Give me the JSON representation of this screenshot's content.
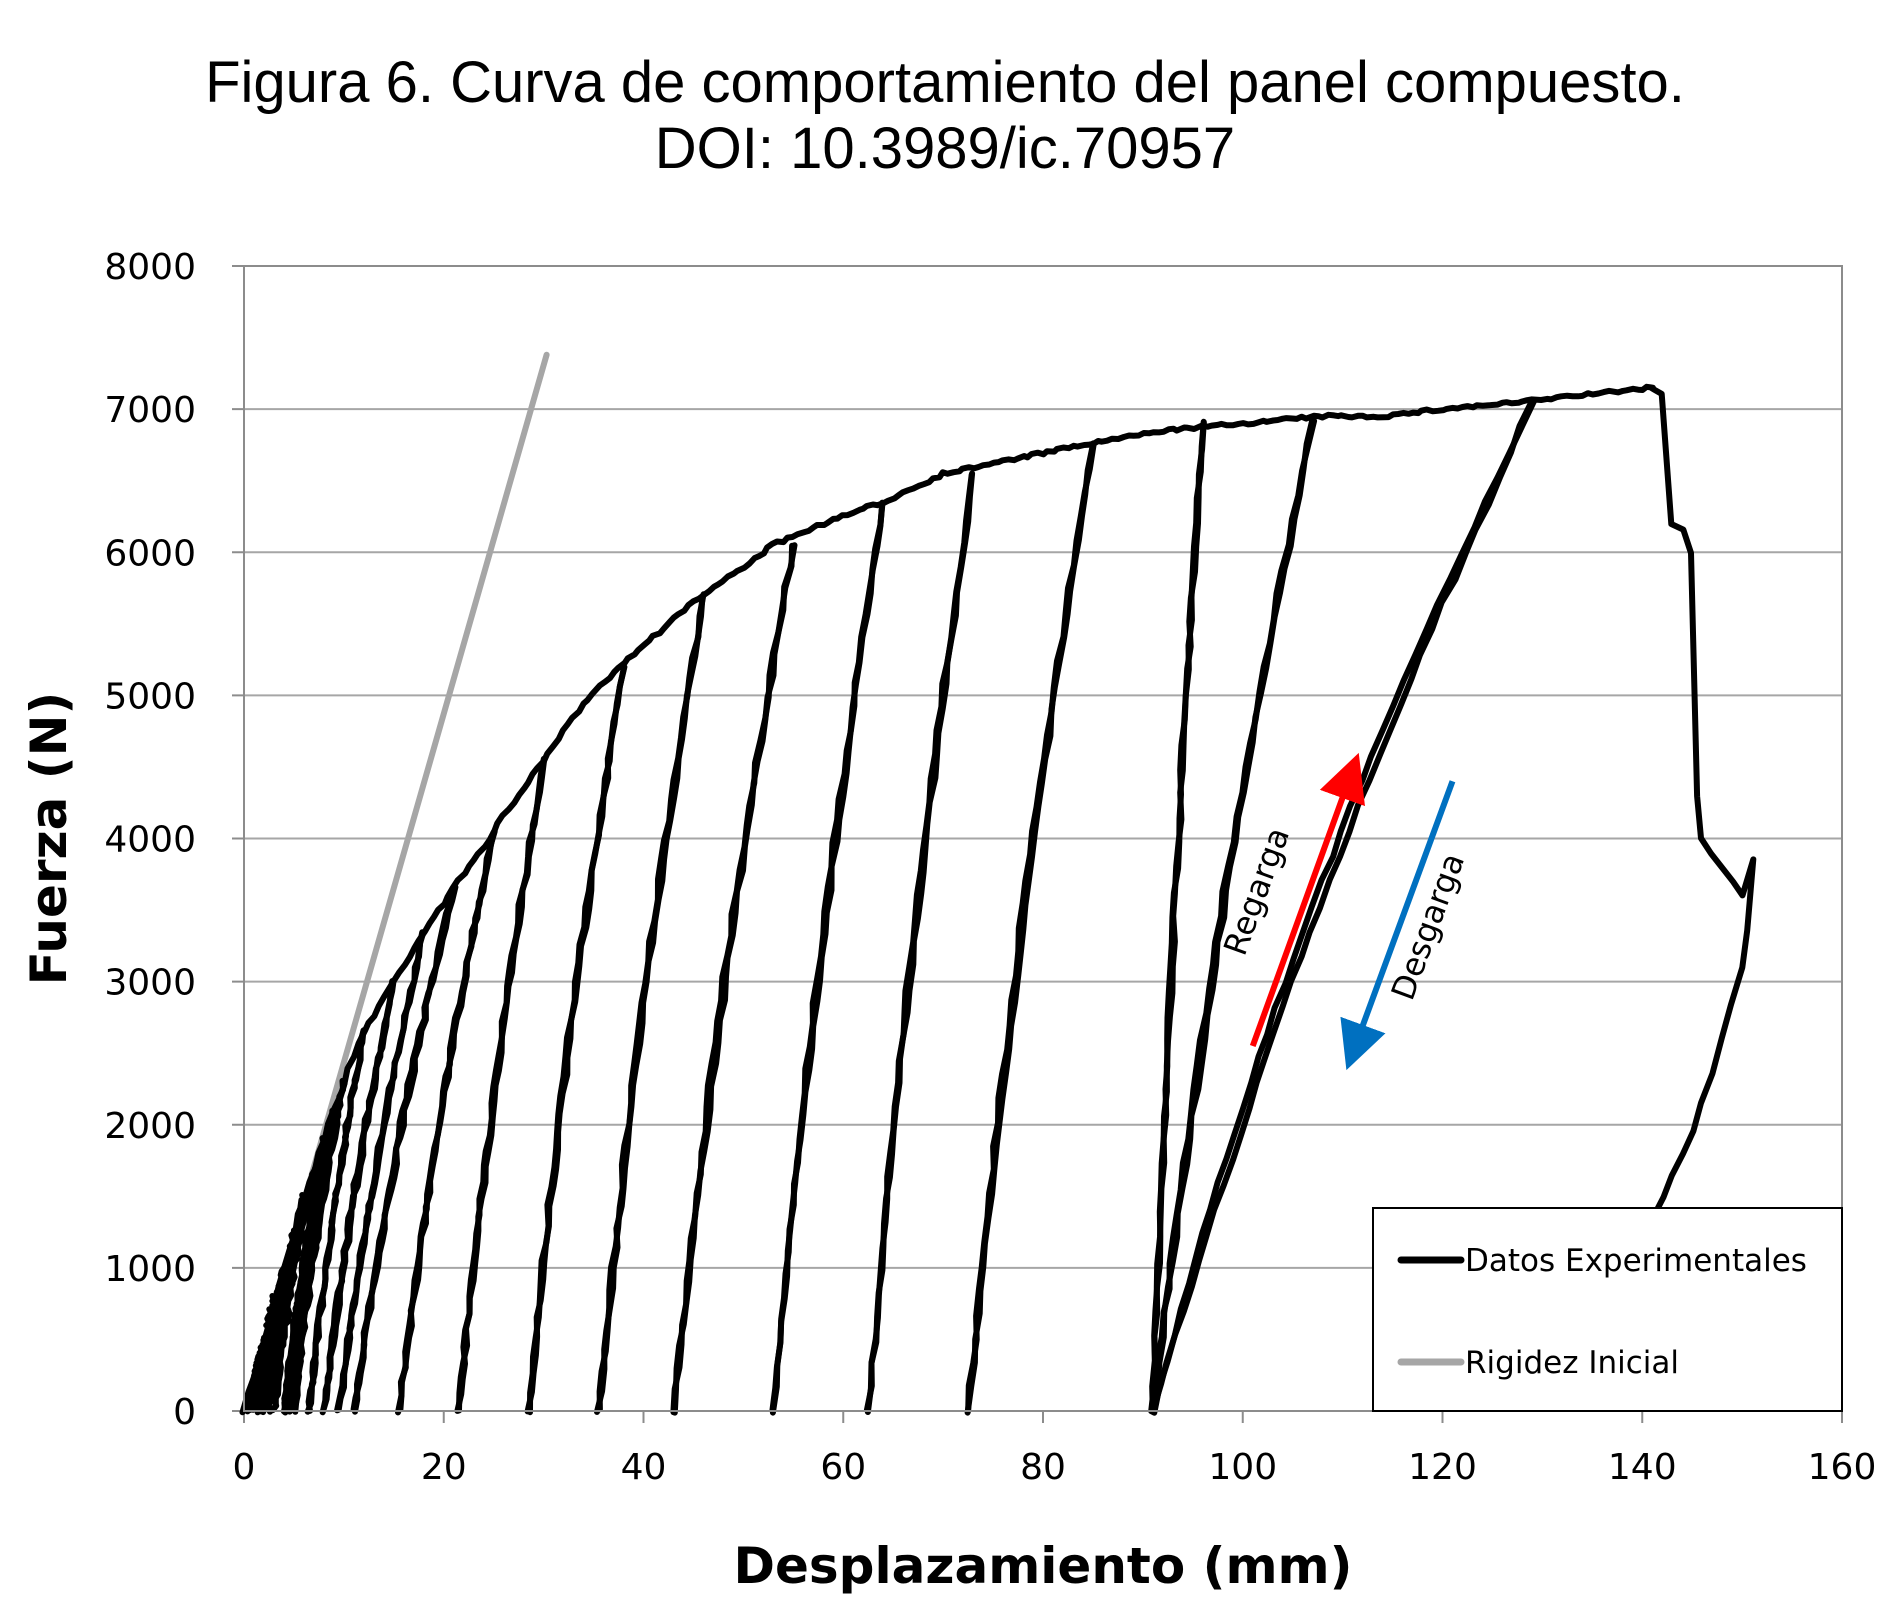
{
  "figure": {
    "title_line1": "Figura 6. Curva de comportamiento del panel compuesto.",
    "title_line2": "DOI: 10.3989/ic.70957"
  },
  "chart_data": {
    "type": "line",
    "xlabel": "Desplazamiento  (mm)",
    "ylabel": "Fuerza  (N)",
    "xlim": [
      0,
      160
    ],
    "ylim": [
      0,
      8000
    ],
    "xticks": [
      0,
      20,
      40,
      60,
      80,
      100,
      120,
      140,
      160
    ],
    "yticks": [
      0,
      1000,
      2000,
      3000,
      4000,
      5000,
      6000,
      7000,
      8000
    ],
    "grid": "horizontal",
    "legend": {
      "position": "bottom-right"
    },
    "series": [
      {
        "name": "Datos Experimentales",
        "color": "#000000",
        "envelope": [
          [
            0,
            0
          ],
          [
            2,
            500
          ],
          [
            4,
            1000
          ],
          [
            6,
            1500
          ],
          [
            8,
            1900
          ],
          [
            10,
            2300
          ],
          [
            12,
            2650
          ],
          [
            15,
            3000
          ],
          [
            18,
            3350
          ],
          [
            21,
            3650
          ],
          [
            25,
            4050
          ],
          [
            28,
            4350
          ],
          [
            30,
            4550
          ],
          [
            33,
            4850
          ],
          [
            36,
            5100
          ],
          [
            40,
            5350
          ],
          [
            44,
            5600
          ],
          [
            48,
            5800
          ],
          [
            53,
            6050
          ],
          [
            58,
            6200
          ],
          [
            64,
            6350
          ],
          [
            70,
            6550
          ],
          [
            77,
            6650
          ],
          [
            84,
            6750
          ],
          [
            92,
            6850
          ],
          [
            100,
            6900
          ],
          [
            108,
            6950
          ],
          [
            114,
            6950
          ],
          [
            120,
            7000
          ],
          [
            128,
            7050
          ],
          [
            134,
            7100
          ],
          [
            141,
            7150
          ]
        ],
        "cycles": [
          {
            "peak": [
              2,
              500
            ],
            "residual": 0.5
          },
          {
            "peak": [
              3,
              800
            ],
            "residual": 1.0
          },
          {
            "peak": [
              4,
              1000
            ],
            "residual": 1.5
          },
          {
            "peak": [
              5,
              1250
            ],
            "residual": 2.0
          },
          {
            "peak": [
              6,
              1500
            ],
            "residual": 2.5
          },
          {
            "peak": [
              7,
              1700
            ],
            "residual": 3.0
          },
          {
            "peak": [
              8,
              1900
            ],
            "residual": 4.0
          },
          {
            "peak": [
              9,
              2100
            ],
            "residual": 4.5
          },
          {
            "peak": [
              10,
              2300
            ],
            "residual": 5.0
          },
          {
            "peak": [
              12,
              2650
            ],
            "residual": 6.5
          },
          {
            "peak": [
              15,
              3000
            ],
            "residual": 8.0
          },
          {
            "peak": [
              18,
              3350
            ],
            "residual": 9.5
          },
          {
            "peak": [
              21,
              3650
            ],
            "residual": 11.0
          },
          {
            "peak": [
              25,
              4050
            ],
            "residual": 15.5
          },
          {
            "peak": [
              30,
              4550
            ],
            "residual": 21.5
          },
          {
            "peak": [
              38,
              5200
            ],
            "residual": 28.5
          },
          {
            "peak": [
              46,
              5700
            ],
            "residual": 35.5
          },
          {
            "peak": [
              55,
              6050
            ],
            "residual": 43.0
          },
          {
            "peak": [
              64,
              6350
            ],
            "residual": 53.0
          },
          {
            "peak": [
              73,
              6550
            ],
            "residual": 62.5
          },
          {
            "peak": [
              85,
              6750
            ],
            "residual": 72.5
          },
          {
            "peak": [
              96,
              6900
            ],
            "residual": 91.0
          },
          {
            "peak": [
              107,
              6920
            ],
            "residual": 91.0
          },
          {
            "peak": [
              129,
              7050
            ],
            "residual": 91.0
          }
        ],
        "post_peak": [
          [
            141,
            7150
          ],
          [
            142,
            7100
          ],
          [
            143,
            6200
          ],
          [
            144,
            6150
          ],
          [
            145,
            6000
          ],
          [
            145.5,
            4300
          ],
          [
            146,
            4000
          ],
          [
            147,
            3900
          ],
          [
            149,
            3700
          ],
          [
            150,
            3600
          ],
          [
            151,
            3850
          ],
          [
            150.5,
            3350
          ],
          [
            150,
            3100
          ],
          [
            149,
            2850
          ],
          [
            148,
            2600
          ],
          [
            147,
            2350
          ],
          [
            146,
            2150
          ],
          [
            145,
            1950
          ],
          [
            144,
            1800
          ],
          [
            143,
            1650
          ],
          [
            142,
            1500
          ],
          [
            141,
            1350
          ]
        ]
      },
      {
        "name": "Rigidez Inicial",
        "color": "#a6a6a6",
        "points": [
          [
            0,
            0
          ],
          [
            30.3,
            7380
          ]
        ]
      }
    ],
    "annotations": [
      {
        "text": "Regarga",
        "color": "#ff0000",
        "from": [
          101,
          2550
        ],
        "to": [
          111,
          4480
        ]
      },
      {
        "text": "Desgarga",
        "color": "#0070c0",
        "from": [
          121,
          4400
        ],
        "to": [
          111,
          2500
        ]
      }
    ]
  }
}
